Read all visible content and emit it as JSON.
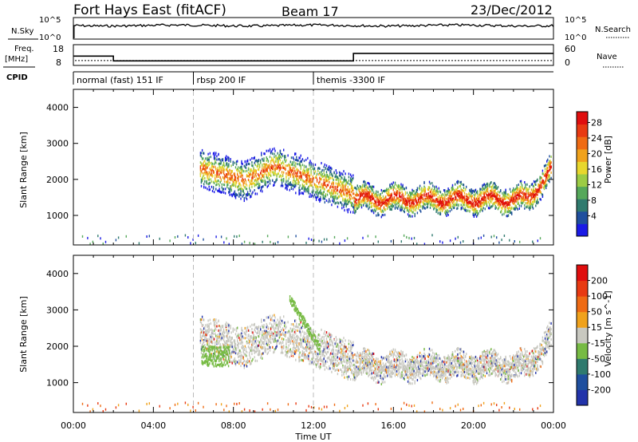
{
  "header": {
    "station": "Fort Hays East (fitACF)",
    "beam": "Beam 17",
    "date": "23/Dec/2012"
  },
  "sky_panel": {
    "left_label": "N.Sky",
    "right_label": "N.Search",
    "tick_top": "10^5",
    "tick_bottom": "10^0"
  },
  "freq_panel": {
    "left_label_line1": "Freq.",
    "left_label_line2": "[MHz]",
    "right_label": "Nave",
    "left_ticks": [
      "18",
      "8"
    ],
    "right_ticks": [
      "60",
      "0"
    ],
    "freq_steps": [
      {
        "t0": 0.0,
        "t1": 2.0,
        "value": 12.5
      },
      {
        "t0": 2.0,
        "t1": 14.0,
        "value": 10.2
      },
      {
        "t0": 14.0,
        "t1": 24.0,
        "value": 13.8
      }
    ],
    "nave_level": 14
  },
  "cpid_panel": {
    "label": "CPID",
    "segments": [
      {
        "t0": 0.0,
        "t1": 6.0,
        "label": "normal (fast) 151 IF"
      },
      {
        "t0": 6.0,
        "t1": 12.0,
        "label": "rbsp 200 IF"
      },
      {
        "t0": 12.0,
        "t1": 24.0,
        "label": "themis -3300 IF"
      }
    ]
  },
  "time_axis": {
    "label": "Time UT",
    "ticks": [
      "00:00",
      "04:00",
      "08:00",
      "12:00",
      "16:00",
      "20:00",
      "00:00"
    ]
  },
  "chart_data": [
    {
      "type": "heatmap",
      "name": "power",
      "ylabel": "Slant Range [km]",
      "yticks": [
        1000,
        2000,
        3000,
        4000
      ],
      "ylim": [
        180,
        4500
      ],
      "xlim": [
        0,
        24
      ],
      "colorbar": {
        "label": "Power [dB]",
        "ticks": [
          "4",
          "8",
          "12",
          "16",
          "20",
          "24",
          "28"
        ],
        "colors": [
          "#1a1ae6",
          "#1f4f9e",
          "#2f7a6e",
          "#55a85a",
          "#9ccc45",
          "#e8d72d",
          "#f0a21c",
          "#ef6b14",
          "#e83a12",
          "#e00e0e"
        ]
      }
    },
    {
      "type": "heatmap",
      "name": "velocity",
      "ylabel": "Slant Range [km]",
      "yticks": [
        1000,
        2000,
        3000,
        4000
      ],
      "ylim": [
        180,
        4500
      ],
      "xlim": [
        0,
        24
      ],
      "colorbar": {
        "label": "Velocity [m s^-1]",
        "ticks": [
          "200",
          "100",
          "50",
          "15",
          "-15",
          "-50",
          "-100",
          "-200"
        ],
        "colors": [
          "#2233aa",
          "#1f4f9e",
          "#2f7a6e",
          "#77bb44",
          "#c8c8c0",
          "#f0a21c",
          "#ef6b14",
          "#e83a12",
          "#e00e0e"
        ]
      }
    }
  ]
}
